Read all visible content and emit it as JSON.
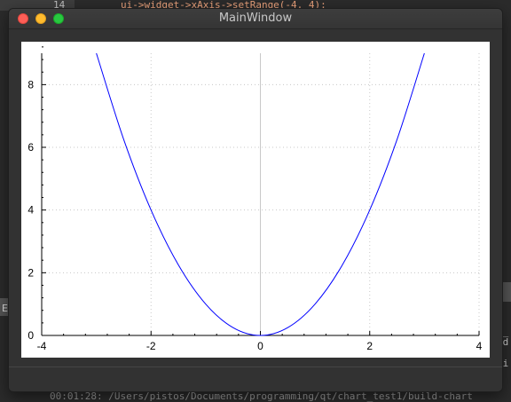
{
  "background": {
    "editor": {
      "line_number": "14",
      "code_line": "ui->widget->xAxis->setRange(-4, 4);"
    },
    "console": {
      "line": "00:01:28: /Users/pistos/Documents/programming/qt/chart_test1/build-chart"
    },
    "side_left_text": "E",
    "side_right_text": "t_\ned\n\nui"
  },
  "window": {
    "title": "MainWindow",
    "colors": {
      "close": "#fd5f57",
      "minimize": "#febb2e",
      "maximize": "#28c840"
    }
  },
  "chart_data": {
    "type": "line",
    "title": "",
    "xlabel": "",
    "ylabel": "",
    "xlim": [
      -4,
      4
    ],
    "ylim": [
      0,
      9
    ],
    "x_ticks": [
      "-4",
      "-2",
      "0",
      "2",
      "4"
    ],
    "y_ticks": [
      "0",
      "2",
      "4",
      "6",
      "8"
    ],
    "grid": true,
    "series": [
      {
        "color": "#0000ff",
        "x": [
          -3,
          -2.5,
          -2,
          -1.5,
          -1,
          -0.5,
          0,
          0.5,
          1,
          1.5,
          2,
          2.5,
          3
        ],
        "y": [
          9,
          6.25,
          4,
          2.25,
          1,
          0.25,
          0,
          0.25,
          1,
          2.25,
          4,
          6.25,
          9
        ]
      }
    ]
  }
}
